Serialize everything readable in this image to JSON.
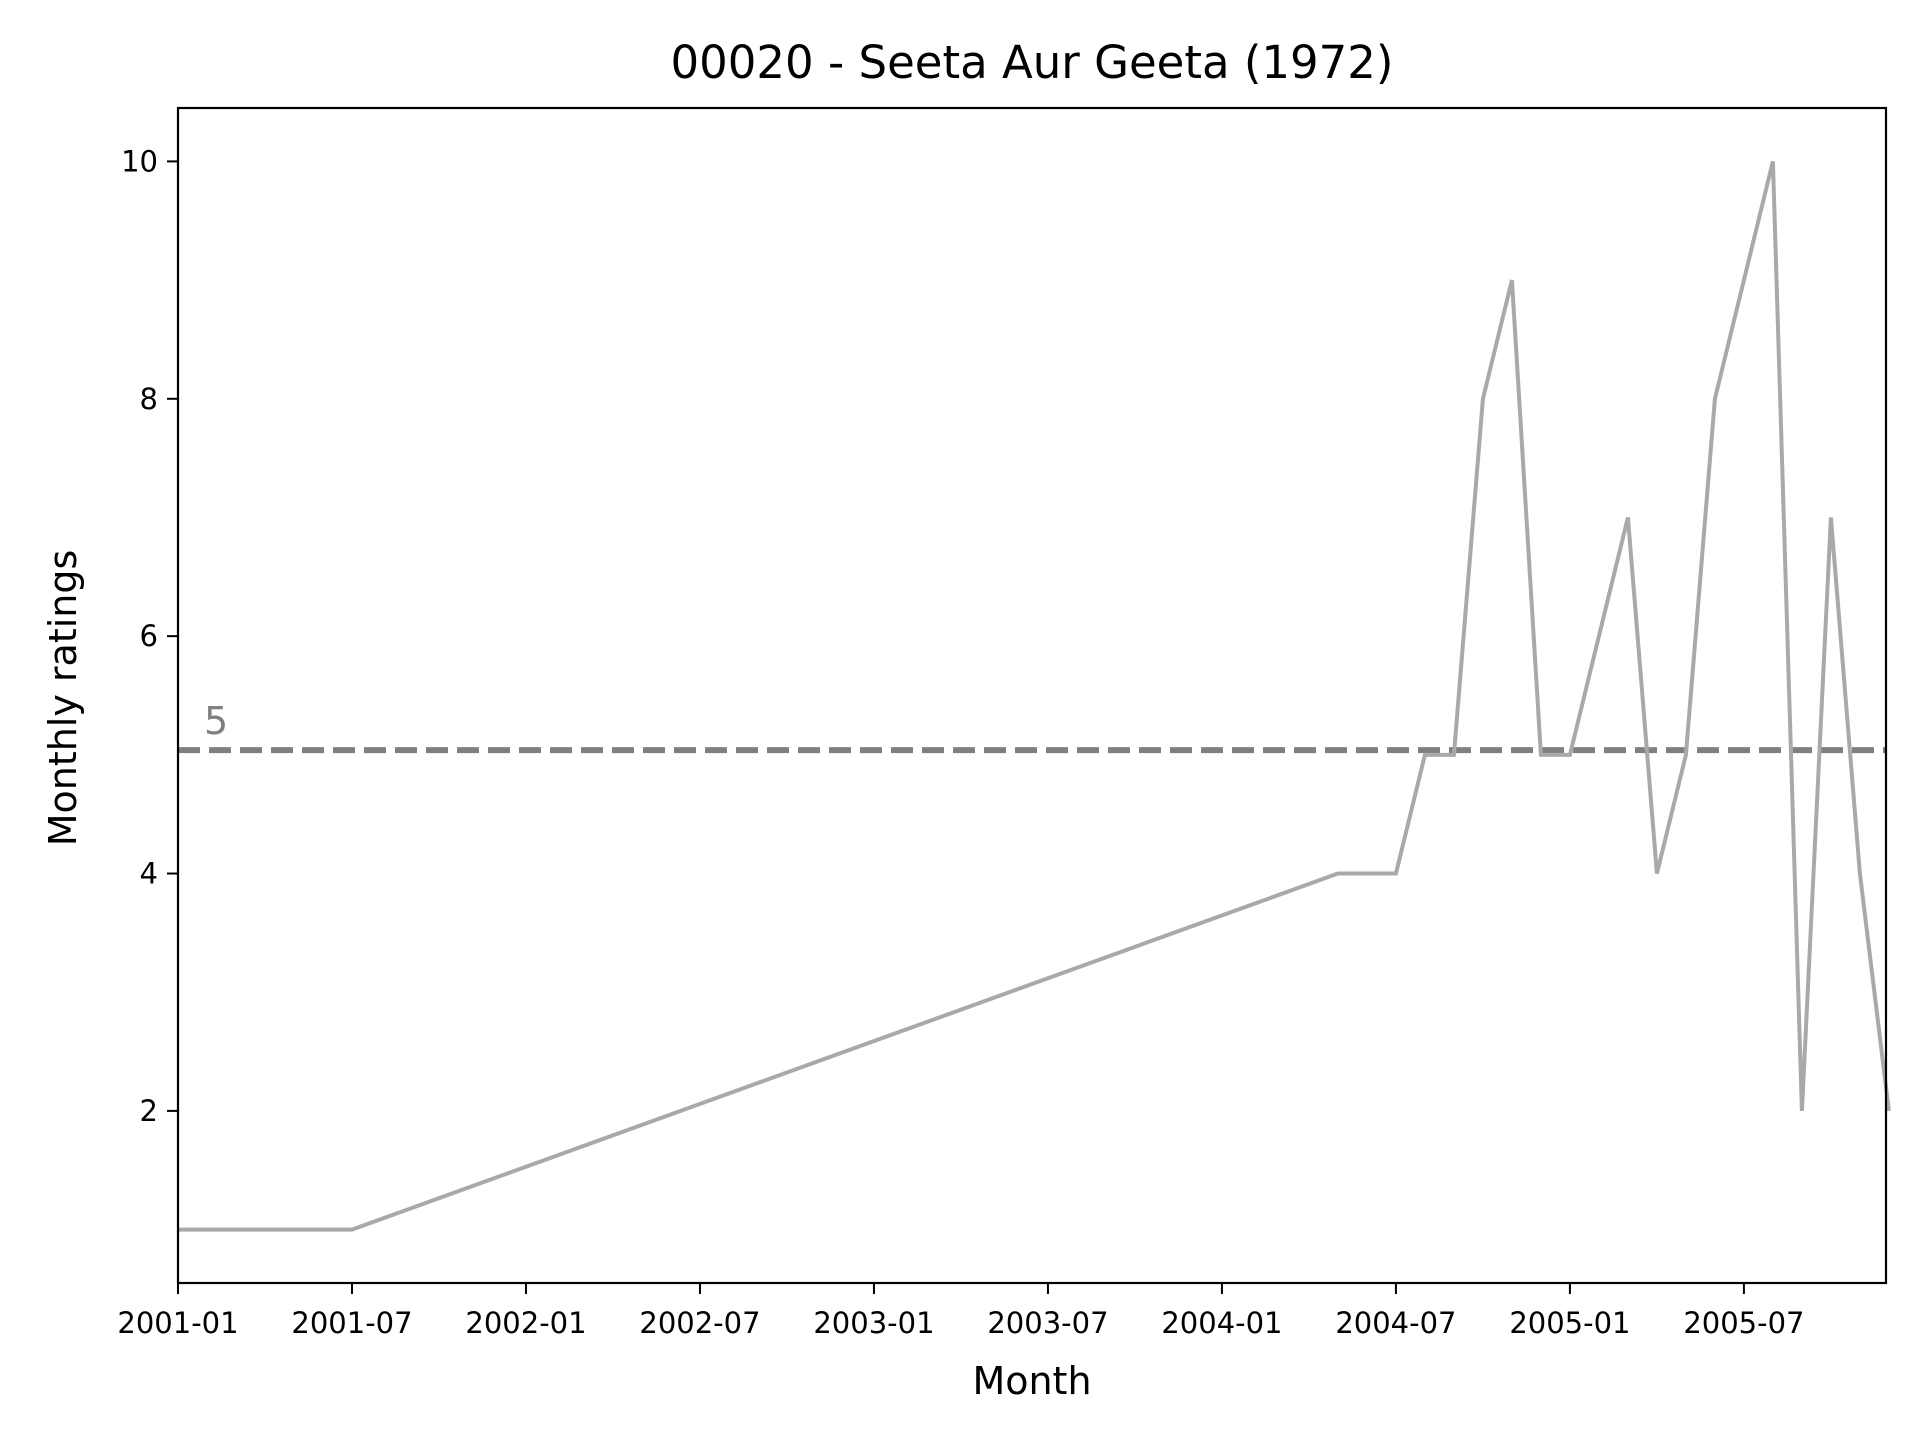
{
  "chart_data": {
    "type": "line",
    "title": "00020 - Seeta Aur Geeta (1972)",
    "xlabel": "Month",
    "ylabel": "Monthly ratings",
    "xlim": [
      "2001-01",
      "2005-11"
    ],
    "ylim": [
      0.55,
      10.45
    ],
    "grid": false,
    "x_ticks": [
      "2001-01",
      "2001-07",
      "2002-01",
      "2002-07",
      "2003-01",
      "2003-07",
      "2004-01",
      "2004-07",
      "2005-01",
      "2005-07"
    ],
    "y_ticks": [
      2,
      4,
      6,
      8,
      10
    ],
    "series": [
      {
        "color": "#a9a9a9",
        "x": [
          "2001-01",
          "2001-07",
          "2004-05",
          "2004-07",
          "2004-08",
          "2004-09",
          "2004-10",
          "2004-11",
          "2004-12",
          "2005-01",
          "2005-02",
          "2005-03",
          "2005-04",
          "2005-05",
          "2005-06",
          "2005-07",
          "2005-08",
          "2005-09",
          "2005-10",
          "2005-11",
          "2005-12"
        ],
        "y": [
          1,
          1,
          4,
          4,
          5,
          5,
          8,
          9,
          5,
          5,
          6,
          7,
          4,
          5,
          8,
          9,
          10,
          2,
          7,
          4,
          2
        ]
      }
    ],
    "reference_line": {
      "y": 5.04,
      "label": "5",
      "color": "#808080",
      "style": "dashed"
    }
  }
}
